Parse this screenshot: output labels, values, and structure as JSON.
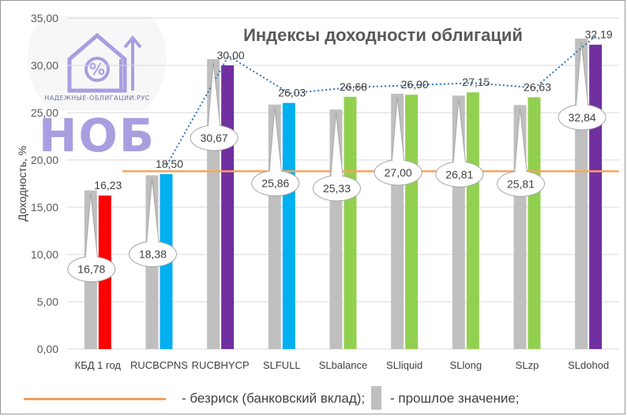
{
  "chart_data": {
    "type": "bar",
    "title": "Индексы доходности облигаций",
    "ylabel": "Доходность, %",
    "ylim": [
      0,
      35
    ],
    "yticks": [
      "0,00",
      "5,00",
      "10,00",
      "15,00",
      "20,00",
      "25,00",
      "30,00",
      "35,00"
    ],
    "categories": [
      "КБД 1 год",
      "RUCBCPNS",
      "RUCBHYCP",
      "SLFULL",
      "SLbalance",
      "SLliquid",
      "SLlong",
      "SLzp",
      "SLdohod"
    ],
    "series": [
      {
        "name": "прошлое значение",
        "values": [
          16.78,
          18.38,
          30.67,
          25.86,
          25.33,
          27.0,
          26.81,
          25.81,
          32.84
        ],
        "labels": [
          "16,78",
          "18,38",
          "30,67",
          "25,86",
          "25,33",
          "27,00",
          "26,81",
          "25,81",
          "32,84"
        ],
        "color": "#bfbfbf"
      },
      {
        "values": [
          16.23,
          18.5,
          30.0,
          26.03,
          26.68,
          26.9,
          27.15,
          26.63,
          32.19
        ],
        "labels": [
          "16,23",
          "18,50",
          "30,00",
          "26,03",
          "26,68",
          "26,90",
          "27,15",
          "26,63",
          "32,19"
        ],
        "colors": [
          "#ff0000",
          "#00b0f0",
          "#7030a0",
          "#00b0f0",
          "#92d050",
          "#92d050",
          "#92d050",
          "#92d050",
          "#7030a0"
        ]
      }
    ],
    "reference_line": {
      "value": 18.8,
      "color": "#f4a460"
    },
    "trend_line": {
      "style": "dotted",
      "color": "#2e75b6",
      "from_category": 1
    },
    "legend": [
      {
        "text": "- безриск (банковский вклад);"
      },
      {
        "text": "- прошлое значение;"
      }
    ]
  },
  "logo": {
    "text": "НАДЕЖНЫЕ-ОБЛИГАЦИИ.РУС",
    "big": "НОБ"
  }
}
